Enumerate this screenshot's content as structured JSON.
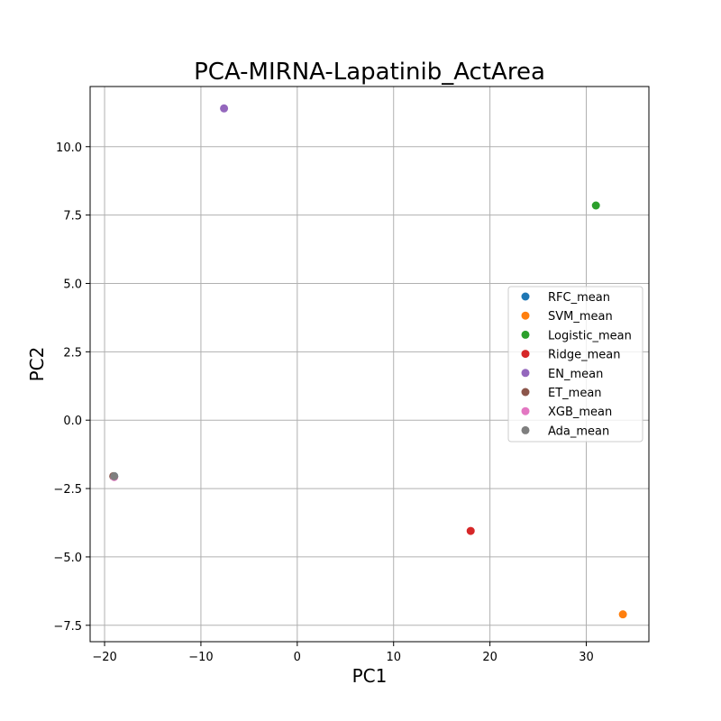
{
  "chart_data": {
    "type": "scatter",
    "title": "PCA-MIRNA-Lapatinib_ActArea",
    "xlabel": "PC1",
    "ylabel": "PC2",
    "xlim": [
      -21.5,
      36.5
    ],
    "ylim": [
      -8.1,
      12.2
    ],
    "xticks": [
      -20,
      -10,
      0,
      10,
      20,
      30
    ],
    "xtick_labels": [
      "−20",
      "−10",
      "0",
      "10",
      "20",
      "30"
    ],
    "yticks": [
      -7.5,
      -5.0,
      -2.5,
      0.0,
      2.5,
      5.0,
      7.5,
      10.0
    ],
    "ytick_labels": [
      "−7.5",
      "−5.0",
      "−2.5",
      "0.0",
      "2.5",
      "5.0",
      "7.5",
      "10.0"
    ],
    "grid": true,
    "legend_position": "center-right",
    "series": [
      {
        "name": "RFC_mean",
        "color": "#1f77b4",
        "x": [
          -19.0
        ],
        "y": [
          -2.05
        ]
      },
      {
        "name": "SVM_mean",
        "color": "#ff7f0e",
        "x": [
          33.8
        ],
        "y": [
          -7.1
        ]
      },
      {
        "name": "Logistic_mean",
        "color": "#2ca02c",
        "x": [
          31.0
        ],
        "y": [
          7.85
        ]
      },
      {
        "name": "Ridge_mean",
        "color": "#d62728",
        "x": [
          18.0
        ],
        "y": [
          -4.05
        ]
      },
      {
        "name": "EN_mean",
        "color": "#9467bd",
        "x": [
          -7.6
        ],
        "y": [
          11.4
        ]
      },
      {
        "name": "ET_mean",
        "color": "#8c564b",
        "x": [
          -19.1
        ],
        "y": [
          -2.05
        ]
      },
      {
        "name": "XGB_mean",
        "color": "#e377c2",
        "x": [
          -19.0
        ],
        "y": [
          -2.08
        ]
      },
      {
        "name": "Ada_mean",
        "color": "#7f7f7f",
        "x": [
          -19.0
        ],
        "y": [
          -2.05
        ]
      }
    ]
  }
}
